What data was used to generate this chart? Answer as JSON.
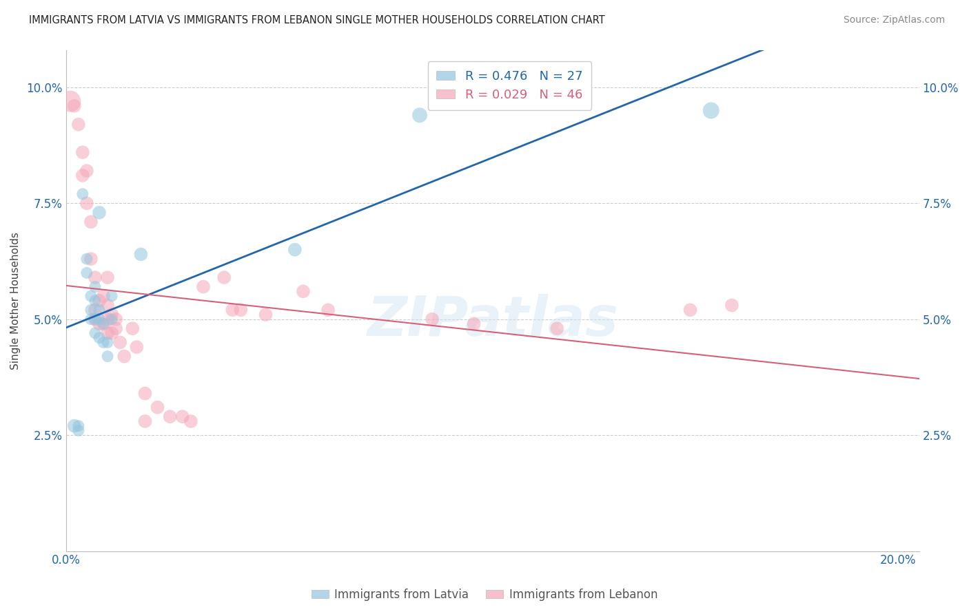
{
  "title": "IMMIGRANTS FROM LATVIA VS IMMIGRANTS FROM LEBANON SINGLE MOTHER HOUSEHOLDS CORRELATION CHART",
  "source": "Source: ZipAtlas.com",
  "ylabel": "Single Mother Households",
  "color_latvia": "#92c5de",
  "color_lebanon": "#f4a6b8",
  "line_color_latvia": "#2166ac",
  "line_color_lebanon": "#d6607a",
  "watermark": "ZIPatlas",
  "legend_latvia": "R = 0.476   N = 27",
  "legend_lebanon": "R = 0.029   N = 46",
  "legend_label_latvia": "Immigrants from Latvia",
  "legend_label_lebanon": "Immigrants from Lebanon",
  "xlim": [
    0,
    0.205
  ],
  "ylim": [
    0,
    0.108
  ],
  "y_ticks": [
    0.025,
    0.05,
    0.075,
    0.1
  ],
  "y_tick_labels": [
    "2.5%",
    "5.0%",
    "7.5%",
    "10.0%"
  ],
  "x_ticks": [
    0.0,
    0.04,
    0.08,
    0.12,
    0.16,
    0.2
  ],
  "x_tick_labels": [
    "0.0%",
    "",
    "",
    "",
    "",
    "20.0%"
  ],
  "latvia_x": [
    0.002,
    0.003,
    0.003,
    0.004,
    0.005,
    0.005,
    0.006,
    0.006,
    0.006,
    0.007,
    0.007,
    0.007,
    0.007,
    0.008,
    0.008,
    0.008,
    0.008,
    0.009,
    0.009,
    0.01,
    0.01,
    0.011,
    0.011,
    0.018,
    0.055,
    0.085,
    0.155
  ],
  "latvia_y": [
    0.027,
    0.027,
    0.026,
    0.077,
    0.063,
    0.06,
    0.055,
    0.052,
    0.05,
    0.054,
    0.05,
    0.047,
    0.057,
    0.052,
    0.05,
    0.046,
    0.073,
    0.049,
    0.045,
    0.045,
    0.042,
    0.055,
    0.05,
    0.064,
    0.065,
    0.094,
    0.095
  ],
  "latvia_size": [
    200,
    150,
    150,
    150,
    150,
    150,
    150,
    150,
    150,
    150,
    150,
    150,
    150,
    150,
    150,
    150,
    200,
    150,
    150,
    150,
    150,
    150,
    150,
    200,
    200,
    250,
    300
  ],
  "lebanon_x": [
    0.001,
    0.002,
    0.003,
    0.004,
    0.004,
    0.005,
    0.005,
    0.006,
    0.006,
    0.007,
    0.007,
    0.007,
    0.008,
    0.008,
    0.009,
    0.009,
    0.01,
    0.01,
    0.01,
    0.01,
    0.011,
    0.011,
    0.012,
    0.012,
    0.013,
    0.014,
    0.016,
    0.017,
    0.019,
    0.019,
    0.022,
    0.025,
    0.028,
    0.03,
    0.033,
    0.038,
    0.04,
    0.042,
    0.048,
    0.057,
    0.063,
    0.088,
    0.098,
    0.118,
    0.15,
    0.16
  ],
  "lebanon_y": [
    0.097,
    0.096,
    0.092,
    0.086,
    0.081,
    0.082,
    0.075,
    0.071,
    0.063,
    0.059,
    0.052,
    0.05,
    0.054,
    0.049,
    0.055,
    0.049,
    0.059,
    0.053,
    0.05,
    0.047,
    0.051,
    0.047,
    0.05,
    0.048,
    0.045,
    0.042,
    0.048,
    0.044,
    0.034,
    0.028,
    0.031,
    0.029,
    0.029,
    0.028,
    0.057,
    0.059,
    0.052,
    0.052,
    0.051,
    0.056,
    0.052,
    0.05,
    0.049,
    0.048,
    0.052,
    0.053
  ],
  "lebanon_size": [
    500,
    200,
    200,
    200,
    200,
    200,
    200,
    200,
    200,
    200,
    200,
    200,
    200,
    200,
    200,
    200,
    200,
    200,
    200,
    200,
    200,
    200,
    200,
    200,
    200,
    200,
    200,
    200,
    200,
    200,
    200,
    200,
    200,
    200,
    200,
    200,
    200,
    200,
    200,
    200,
    200,
    200,
    200,
    200,
    200,
    200
  ]
}
